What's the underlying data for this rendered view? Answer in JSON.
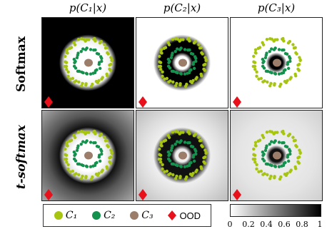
{
  "columns": [
    {
      "title": "p(C₁|x)"
    },
    {
      "title": "p(C₂|x)"
    },
    {
      "title": "p(C₃|x)"
    }
  ],
  "rows": [
    {
      "label": "Softmax"
    },
    {
      "label": "t-softmax"
    }
  ],
  "legend": {
    "items": [
      {
        "label": "C₁",
        "color": "#a7c510",
        "shape": "circle"
      },
      {
        "label": "C₂",
        "color": "#13914d",
        "shape": "circle"
      },
      {
        "label": "C₃",
        "color": "#9c7d6a",
        "shape": "circle"
      },
      {
        "label": "OOD",
        "color": "#e8101a",
        "shape": "diamond"
      }
    ]
  },
  "colorbar": {
    "ticks": [
      "0",
      "0.2",
      "0.4",
      "0.6",
      "0.8",
      "1"
    ],
    "range": [
      0,
      1
    ],
    "colormap": "white-to-black"
  }
}
